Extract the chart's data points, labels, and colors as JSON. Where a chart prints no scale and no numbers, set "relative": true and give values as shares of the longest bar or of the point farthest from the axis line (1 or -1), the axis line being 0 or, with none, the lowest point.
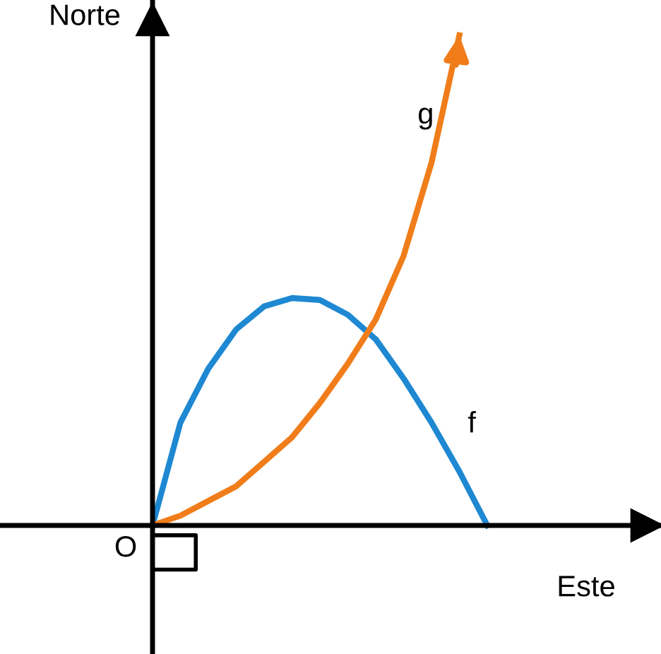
{
  "chart_data": {
    "type": "line",
    "relative": true,
    "xlabel": "Este",
    "ylabel": "Norte",
    "categories": [
      null,
      null,
      null,
      null,
      null,
      null,
      null,
      null,
      null,
      null,
      null,
      null,
      null
    ],
    "series": [
      {
        "name": "f",
        "color": "#1e88d2",
        "values": [
          0,
          0.21,
          0.32,
          0.4,
          0.447,
          0.464,
          0.46,
          0.43,
          0.38,
          0.3,
          0.21,
          0.11,
          0
        ]
      },
      {
        "name": "g",
        "color": "#f07d1a",
        "values": [
          0,
          0.02,
          0.05,
          0.08,
          0.13,
          0.18,
          0.25,
          0.33,
          0.42,
          0.55,
          0.74,
          1.0,
          null
        ]
      }
    ],
    "annotations": [
      "O"
    ],
    "legend": false,
    "grid": false,
    "marker": "none",
    "line_style": "solid"
  }
}
